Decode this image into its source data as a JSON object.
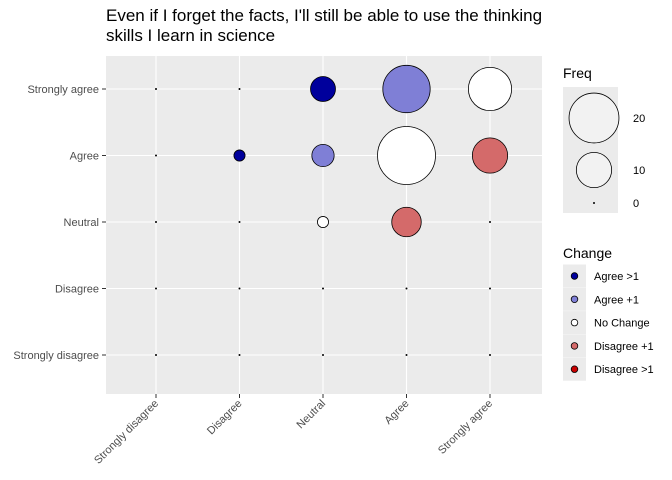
{
  "chart_data": {
    "type": "scatter",
    "title_lines": [
      "Even if I forget the facts, I'll still be able to use the thinking",
      "skills I learn in science"
    ],
    "xlabel": "",
    "ylabel": "",
    "x_categories": [
      "Strongly disagree",
      "Disagree",
      "Neutral",
      "Agree",
      "Strongly agree"
    ],
    "y_categories": [
      "Strongly disagree",
      "Disagree",
      "Neutral",
      "Agree",
      "Strongly agree"
    ],
    "grid": true,
    "legend_position": "right",
    "size_legend": {
      "title": "Freq",
      "breaks": [
        20,
        10,
        0
      ],
      "max_freq": 27
    },
    "color_legend": {
      "title": "Change",
      "entries": [
        {
          "label": "Agree >1",
          "color": "#00009C"
        },
        {
          "label": "Agree +1",
          "color": "#7F7FD6"
        },
        {
          "label": "No Change",
          "color": "#FFFFFF"
        },
        {
          "label": "Disagree +1",
          "color": "#D46A6A"
        },
        {
          "label": "Disagree >1",
          "color": "#C80000"
        }
      ]
    },
    "points": [
      {
        "x": "Neutral",
        "y": "Strongly agree",
        "freq": 5,
        "change": "Agree >1"
      },
      {
        "x": "Agree",
        "y": "Strongly agree",
        "freq": 18,
        "change": "Agree +1"
      },
      {
        "x": "Strongly agree",
        "y": "Strongly agree",
        "freq": 15,
        "change": "No Change"
      },
      {
        "x": "Disagree",
        "y": "Agree",
        "freq": 1,
        "change": "Agree >1"
      },
      {
        "x": "Neutral",
        "y": "Agree",
        "freq": 4,
        "change": "Agree +1"
      },
      {
        "x": "Agree",
        "y": "Agree",
        "freq": 27,
        "change": "No Change"
      },
      {
        "x": "Strongly agree",
        "y": "Agree",
        "freq": 10,
        "change": "Disagree +1"
      },
      {
        "x": "Neutral",
        "y": "Neutral",
        "freq": 1,
        "change": "No Change"
      },
      {
        "x": "Agree",
        "y": "Neutral",
        "freq": 7,
        "change": "Disagree +1"
      },
      {
        "x": "Strongly disagree",
        "y": "Strongly agree",
        "freq": 0,
        "change": "No Change"
      },
      {
        "x": "Disagree",
        "y": "Strongly agree",
        "freq": 0,
        "change": "No Change"
      },
      {
        "x": "Strongly disagree",
        "y": "Agree",
        "freq": 0,
        "change": "No Change"
      },
      {
        "x": "Strongly disagree",
        "y": "Neutral",
        "freq": 0,
        "change": "No Change"
      },
      {
        "x": "Disagree",
        "y": "Neutral",
        "freq": 0,
        "change": "No Change"
      },
      {
        "x": "Strongly agree",
        "y": "Neutral",
        "freq": 0,
        "change": "No Change"
      },
      {
        "x": "Strongly disagree",
        "y": "Disagree",
        "freq": 0,
        "change": "No Change"
      },
      {
        "x": "Disagree",
        "y": "Disagree",
        "freq": 0,
        "change": "No Change"
      },
      {
        "x": "Neutral",
        "y": "Disagree",
        "freq": 0,
        "change": "No Change"
      },
      {
        "x": "Agree",
        "y": "Disagree",
        "freq": 0,
        "change": "No Change"
      },
      {
        "x": "Strongly agree",
        "y": "Disagree",
        "freq": 0,
        "change": "No Change"
      },
      {
        "x": "Strongly disagree",
        "y": "Strongly disagree",
        "freq": 0,
        "change": "No Change"
      },
      {
        "x": "Disagree",
        "y": "Strongly disagree",
        "freq": 0,
        "change": "No Change"
      },
      {
        "x": "Neutral",
        "y": "Strongly disagree",
        "freq": 0,
        "change": "No Change"
      },
      {
        "x": "Agree",
        "y": "Strongly disagree",
        "freq": 0,
        "change": "No Change"
      },
      {
        "x": "Strongly agree",
        "y": "Strongly disagree",
        "freq": 0,
        "change": "No Change"
      }
    ]
  }
}
